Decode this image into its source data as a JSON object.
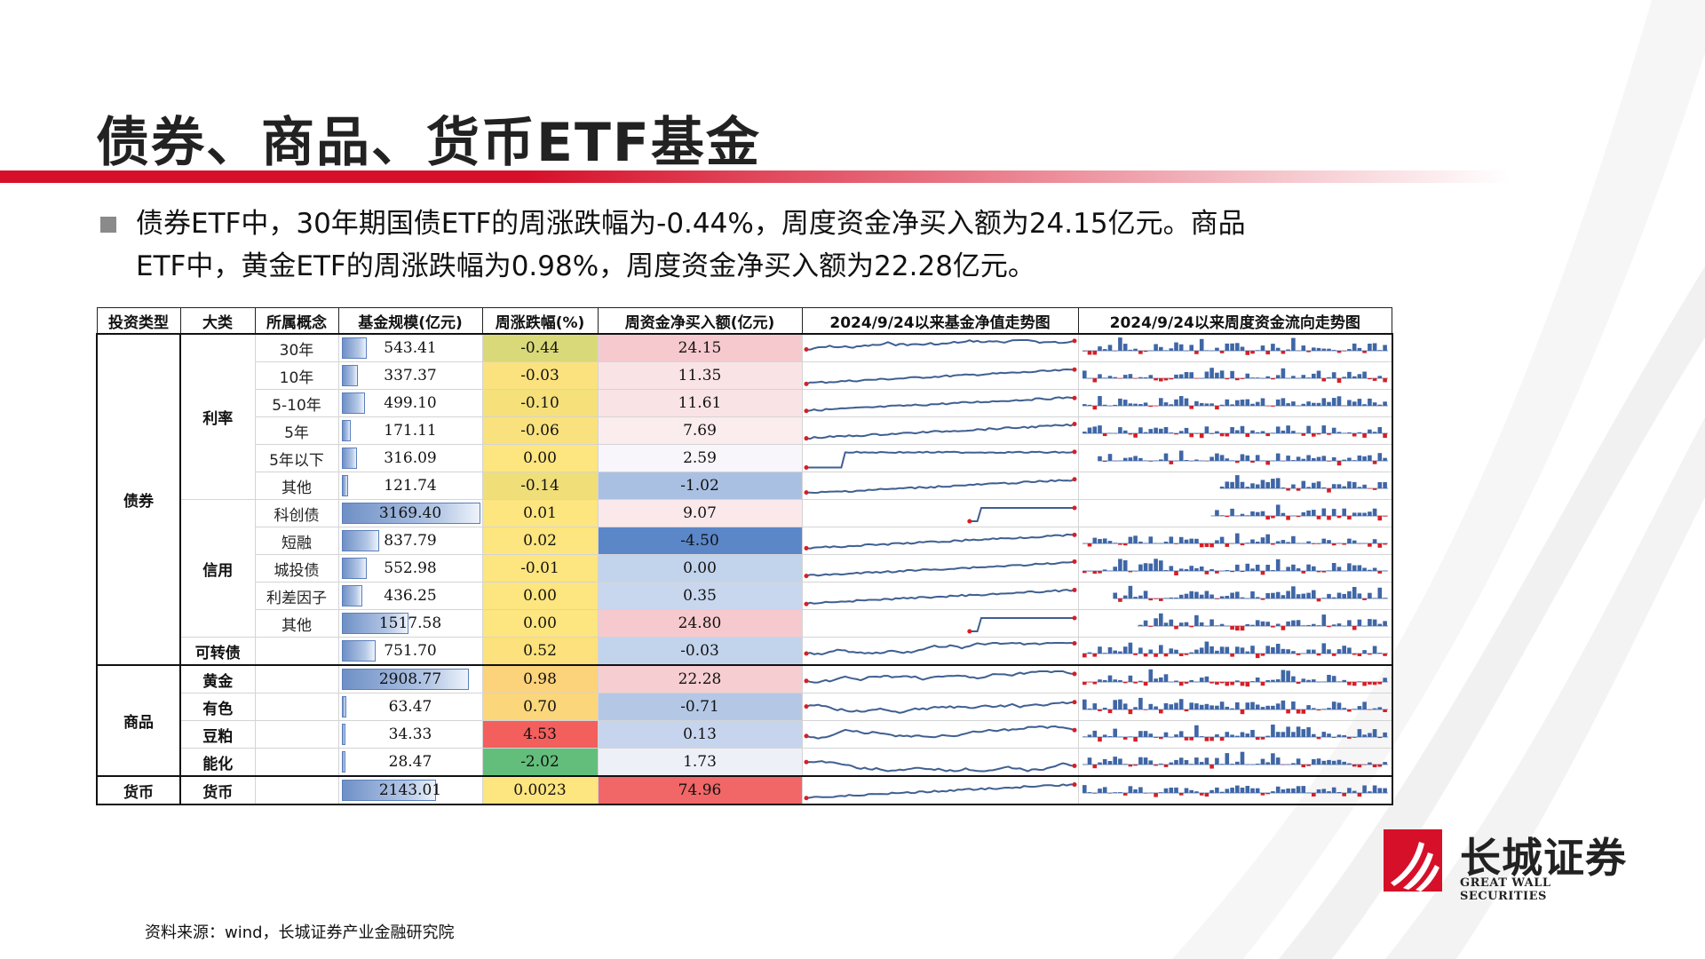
{
  "title": "债券、商品、货币ETF基金",
  "summary": {
    "line1": "债券ETF中，30年期国债ETF的周涨跌幅为-0.44%，周度资金净买入额为24.15亿元。商品",
    "line2": "ETF中，黄金ETF的周涨跌幅为0.98%，周度资金净买入额为22.28亿元。"
  },
  "table": {
    "headers": [
      "投资类型",
      "大类",
      "所属概念",
      "基金规模(亿元)",
      "周涨跌幅(%)",
      "周资金净买入额(亿元)",
      "2024/9/24以来基金净值走势图",
      "2024/9/24以来周度资金流向走势图"
    ],
    "groups": [
      {
        "type": "债券",
        "rows": [
          {
            "category": "利率",
            "concept": "30年",
            "scale": "543.41",
            "weekly_change": "-0.44",
            "net_buy": "24.15",
            "change_color": "#d9d97a",
            "netbuy_color": "#f5c9cd"
          },
          {
            "category": "",
            "concept": "10年",
            "scale": "337.37",
            "weekly_change": "-0.03",
            "net_buy": "11.35",
            "change_color": "#fbe27e",
            "netbuy_color": "#fae3e5"
          },
          {
            "category": "",
            "concept": "5-10年",
            "scale": "499.10",
            "weekly_change": "-0.10",
            "net_buy": "11.61",
            "change_color": "#f5e07a",
            "netbuy_color": "#fae3e5"
          },
          {
            "category": "",
            "concept": "5年",
            "scale": "171.11",
            "weekly_change": "-0.06",
            "net_buy": "7.69",
            "change_color": "#f9e27d",
            "netbuy_color": "#fbeced"
          },
          {
            "category": "",
            "concept": "5年以下",
            "scale": "316.09",
            "weekly_change": "0.00",
            "net_buy": "2.59",
            "change_color": "#fde57f",
            "netbuy_color": "#f8f6fa"
          },
          {
            "category": "",
            "concept": "其他",
            "scale": "121.74",
            "weekly_change": "-0.14",
            "net_buy": "-1.02",
            "change_color": "#f0de79",
            "netbuy_color": "#aac0e2"
          },
          {
            "category": "信用",
            "concept": "科创债",
            "scale": "3169.40",
            "weekly_change": "0.01",
            "net_buy": "9.07",
            "change_color": "#fde57f",
            "netbuy_color": "#fae8ea"
          },
          {
            "category": "",
            "concept": "短融",
            "scale": "837.79",
            "weekly_change": "0.02",
            "net_buy": "-4.50",
            "change_color": "#fde57f",
            "netbuy_color": "#5b86c8"
          },
          {
            "category": "",
            "concept": "城投债",
            "scale": "552.98",
            "weekly_change": "-0.01",
            "net_buy": "0.00",
            "change_color": "#fde57f",
            "netbuy_color": "#c2d3ec"
          },
          {
            "category": "",
            "concept": "利差因子",
            "scale": "436.25",
            "weekly_change": "0.00",
            "net_buy": "0.35",
            "change_color": "#fde57f",
            "netbuy_color": "#c8d7ee"
          },
          {
            "category": "",
            "concept": "其他",
            "scale": "1517.58",
            "weekly_change": "0.00",
            "net_buy": "24.80",
            "change_color": "#fde57f",
            "netbuy_color": "#f5c9cd"
          },
          {
            "category": "可转债",
            "concept": "",
            "scale": "751.70",
            "weekly_change": "0.52",
            "net_buy": "-0.03",
            "change_color": "#fde17c",
            "netbuy_color": "#c2d3ec"
          }
        ]
      },
      {
        "type": "商品",
        "rows": [
          {
            "category": "黄金",
            "concept": "",
            "scale": "2908.77",
            "weekly_change": "0.98",
            "net_buy": "22.28",
            "change_color": "#fcd27a",
            "netbuy_color": "#f6cdd1"
          },
          {
            "category": "有色",
            "concept": "",
            "scale": "63.47",
            "weekly_change": "0.70",
            "net_buy": "-0.71",
            "change_color": "#fcd67b",
            "netbuy_color": "#b4c8e6"
          },
          {
            "category": "豆粕",
            "concept": "",
            "scale": "34.33",
            "weekly_change": "4.53",
            "net_buy": "0.13",
            "change_color": "#f25f5c",
            "netbuy_color": "#c6d5ed"
          },
          {
            "category": "能化",
            "concept": "",
            "scale": "28.47",
            "weekly_change": "-2.02",
            "net_buy": "1.73",
            "change_color": "#63be7b",
            "netbuy_color": "#eef0f8"
          }
        ]
      },
      {
        "type": "货币",
        "rows": [
          {
            "category": "货币",
            "concept": "",
            "scale": "2143.01",
            "weekly_change": "0.0023",
            "net_buy": "74.96",
            "change_color": "#fde57f",
            "netbuy_color": "#f16667"
          }
        ]
      }
    ]
  },
  "footnote": "资料来源：wind，长城证券产业金融研究院",
  "logo": {
    "cn": "长城证券",
    "en": "GREAT WALL SECURITIES"
  },
  "colors": {
    "brand_red": "#d7102a",
    "line_blue": "#3f5f91",
    "bar_blue": "#3f66a6",
    "neg_red": "#d51f26"
  }
}
